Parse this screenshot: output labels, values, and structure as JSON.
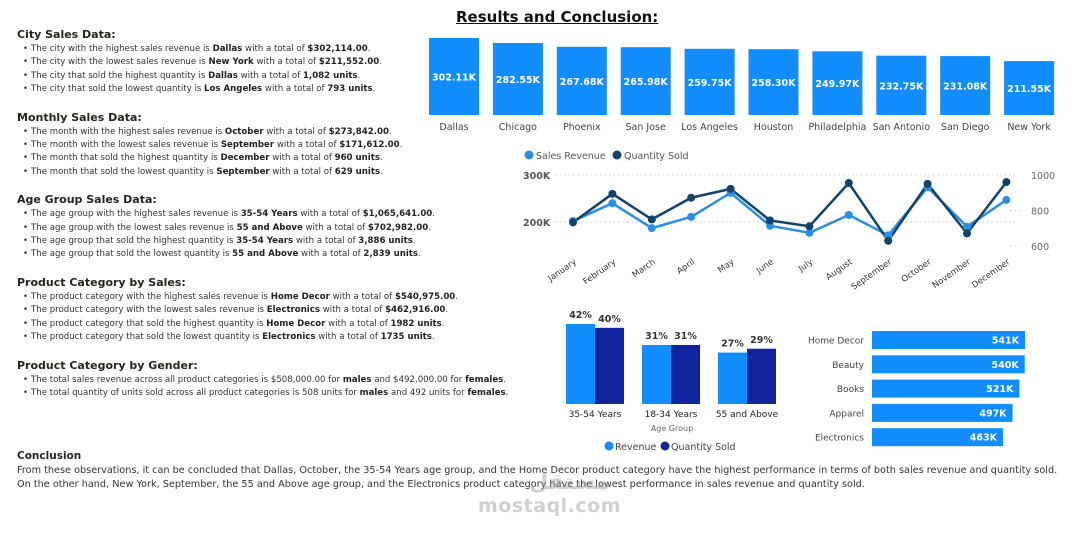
{
  "page_title": "Results and Conclusion:",
  "sections": [
    {
      "heading": "City Sales Data:",
      "items": [
        {
          "pre": "The city with the highest sales revenue is ",
          "b1": "Dallas",
          "mid": " with a total of ",
          "b2": "$302,114.00",
          "post": "."
        },
        {
          "pre": "The city with the lowest sales revenue is ",
          "b1": "New York",
          "mid": " with a total of ",
          "b2": "$211,552.00",
          "post": "."
        },
        {
          "pre": "The city that sold the highest quantity is ",
          "b1": "Dallas",
          "mid": " with a total of ",
          "b2": "1,082 units",
          "post": "."
        },
        {
          "pre": "The city that sold the lowest quantity is ",
          "b1": "Los Angeles",
          "mid": " with a total of ",
          "b2": "793 units",
          "post": "."
        }
      ]
    },
    {
      "heading": "Monthly Sales Data:",
      "items": [
        {
          "pre": "The month with the highest sales revenue is ",
          "b1": "October",
          "mid": " with a total of ",
          "b2": "$273,842.00",
          "post": "."
        },
        {
          "pre": "The month with the lowest sales revenue is ",
          "b1": "September",
          "mid": " with a total of ",
          "b2": "$171,612.00",
          "post": "."
        },
        {
          "pre": "The month that sold the highest quantity is ",
          "b1": "December",
          "mid": " with a total of ",
          "b2": "960 units",
          "post": "."
        },
        {
          "pre": "The month that sold the lowest quantity is ",
          "b1": "September",
          "mid": " with a total of ",
          "b2": "629 units",
          "post": "."
        }
      ]
    },
    {
      "heading": "Age Group Sales Data:",
      "items": [
        {
          "pre": "The age group with the highest sales revenue is ",
          "b1": "35-54 Years",
          "mid": " with a total of ",
          "b2": "$1,065,641.00",
          "post": "."
        },
        {
          "pre": "The age group with the lowest sales revenue is ",
          "b1": "55 and Above",
          "mid": " with a total of ",
          "b2": "$702,982.00",
          "post": "."
        },
        {
          "pre": "The age group that sold the highest quantity is ",
          "b1": "35-54 Years",
          "mid": " with a total of ",
          "b2": "3,886 units",
          "post": "."
        },
        {
          "pre": "The age group that sold the lowest quantity is ",
          "b1": "55 and Above",
          "mid": " with a total of ",
          "b2": "2,839 units",
          "post": "."
        }
      ]
    },
    {
      "heading": "Product Category by Sales:",
      "items": [
        {
          "pre": "The product category with the highest sales revenue is ",
          "b1": "Home Decor",
          "mid": " with a total of ",
          "b2": "$540,975.00",
          "post": "."
        },
        {
          "pre": "The product category with the lowest sales revenue is ",
          "b1": "Electronics",
          "mid": " with a total of ",
          "b2": "$462,916.00",
          "post": "."
        },
        {
          "pre": "The product category that sold the highest quantity is ",
          "b1": "Home Decor",
          "mid": " with a total of ",
          "b2": "1982 units",
          "post": "."
        },
        {
          "pre": "The product category that sold the lowest quantity is ",
          "b1": "Electronics",
          "mid": " with a total of ",
          "b2": "1735 units",
          "post": "."
        }
      ]
    },
    {
      "heading": "Product Category by Gender:",
      "items": [
        {
          "pre": "The total sales revenue across all product categories is $508,000.00 for ",
          "b1": "males",
          "mid": " and $492,000.00 for ",
          "b2": "females",
          "post": "."
        },
        {
          "pre": "The total quantity of units sold across all product categories is 508 units for ",
          "b1": "males",
          "mid": " and 492 units for ",
          "b2": "females",
          "post": "."
        }
      ]
    }
  ],
  "conclusion": {
    "heading": "Conclusion",
    "line1": "From these observations, it can be concluded that Dallas, October, the 35-54 Years age group, and the Home Decor product category have the highest performance in terms of both sales revenue and quantity sold.",
    "line2": "On the other hand, New York, September, the 55 and Above age group, and the Electronics product category have the lowest performance in sales revenue and quantity sold."
  },
  "watermark": {
    "arabic": "مستقل",
    "latin": "mostaql.com"
  },
  "colors": {
    "bar_blue": "#118DFF",
    "line_revenue": "#2B8FE6",
    "line_quantity": "#12436D",
    "age_quantity": "#12239E"
  },
  "chart_data": [
    {
      "type": "bar",
      "title": "",
      "categories": [
        "Dallas",
        "Chicago",
        "Phoenix",
        "San Jose",
        "Los Angeles",
        "Houston",
        "Philadelphia",
        "San Antonio",
        "San Diego",
        "New York"
      ],
      "values": [
        302110,
        282550,
        267680,
        265980,
        259750,
        258300,
        249970,
        232750,
        231080,
        211550
      ],
      "labels": [
        "302.11K",
        "282.55K",
        "267.68K",
        "265.98K",
        "259.75K",
        "258.30K",
        "249.97K",
        "232.75K",
        "231.08K",
        "211.55K"
      ],
      "xlabel": "",
      "ylabel": "",
      "ylim": [
        0,
        310000
      ]
    },
    {
      "type": "line",
      "legend": [
        "Sales Revenue",
        "Quantity Sold"
      ],
      "legend_position": "top-left",
      "x": [
        "January",
        "February",
        "March",
        "April",
        "May",
        "June",
        "July",
        "August",
        "September",
        "October",
        "November",
        "December"
      ],
      "series": [
        {
          "name": "Sales Revenue",
          "axis": "left",
          "values": [
            202000,
            240000,
            187000,
            211000,
            262000,
            192000,
            177000,
            215000,
            171612,
            273842,
            190000,
            247000
          ]
        },
        {
          "name": "Quantity Sold",
          "axis": "right",
          "values": [
            733,
            894,
            750,
            872,
            922,
            744,
            711,
            955,
            629,
            950,
            671,
            960
          ]
        }
      ],
      "left_ticks": [
        "200K",
        "300K"
      ],
      "left_ylim": [
        200000,
        300000
      ],
      "right_ticks": [
        "600",
        "800",
        "1000"
      ],
      "right_ylim": [
        600,
        1000
      ],
      "grid": true
    },
    {
      "type": "bar",
      "title": "",
      "xlabel": "Age Group",
      "categories": [
        "35-54 Years",
        "18-34 Years",
        "55 and Above"
      ],
      "series": [
        {
          "name": "Revenue",
          "values": [
            42,
            31,
            27
          ],
          "labels": [
            "42%",
            "31%",
            "27%"
          ]
        },
        {
          "name": "Quantity Sold",
          "values": [
            40,
            31,
            29
          ],
          "labels": [
            "40%",
            "31%",
            "29%"
          ]
        }
      ],
      "legend": [
        "Revenue",
        "Quantity Sold"
      ],
      "legend_position": "bottom",
      "ylim": [
        0,
        42
      ]
    },
    {
      "type": "bar",
      "orientation": "horizontal",
      "categories": [
        "Home Decor",
        "Beauty",
        "Books",
        "Apparel",
        "Electronics"
      ],
      "values": [
        541000,
        540000,
        521000,
        497000,
        463000
      ],
      "labels": [
        "541K",
        "540K",
        "521K",
        "497K",
        "463K"
      ],
      "xlim": [
        0,
        541000
      ]
    }
  ]
}
